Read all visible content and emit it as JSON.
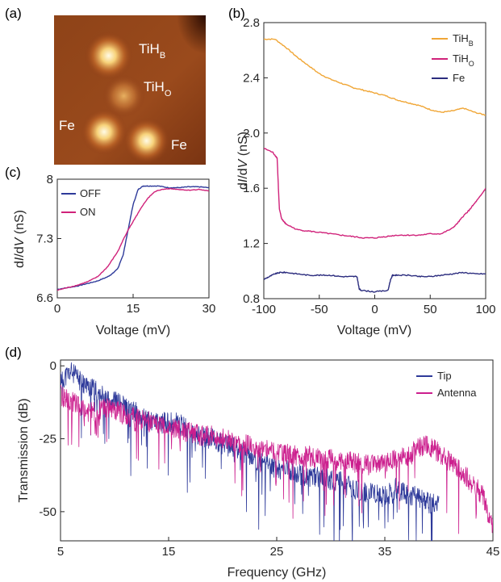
{
  "panel_labels": {
    "a": "(a)",
    "b": "(b)",
    "c": "(c)",
    "d": "(d)"
  },
  "colors": {
    "orange": "#F0A636",
    "magenta": "#D0227A",
    "navy": "#2B2C7E",
    "blue": "#2E3A9A",
    "pink": "#CC1F8E"
  },
  "image_labels": {
    "tihb": {
      "main": "TiH",
      "sub": "B"
    },
    "tiho": {
      "main": "TiH",
      "sub": "O"
    },
    "fe1": "Fe",
    "fe2": "Fe"
  },
  "chart_data": [
    {
      "id": "a",
      "type": "heatmap",
      "features": [
        {
          "label": "TiH_B",
          "x": 0.36,
          "y": 0.27,
          "strength": 1.0
        },
        {
          "label": "TiH_O",
          "x": 0.46,
          "y": 0.54,
          "strength": 0.55
        },
        {
          "label": "Fe",
          "x": 0.33,
          "y": 0.78,
          "strength": 0.85
        },
        {
          "label": "Fe",
          "x": 0.61,
          "y": 0.84,
          "strength": 0.85
        }
      ]
    },
    {
      "id": "b",
      "type": "line",
      "xlabel": "Voltage (mV)",
      "ylabel_parts": [
        "d",
        "I",
        "/d",
        "V",
        " (nS)"
      ],
      "xlim": [
        -100,
        100
      ],
      "ylim": [
        0.8,
        2.8
      ],
      "xticks": [
        -100,
        -50,
        0,
        50,
        100
      ],
      "xtick_labels": [
        "-100",
        "-50",
        "0",
        "50",
        "100"
      ],
      "yticks": [
        0.8,
        1.2,
        1.6,
        2.0,
        2.4,
        2.8
      ],
      "ytick_labels": [
        "0.8",
        "1.2",
        "1.6",
        "2.0",
        "2.4",
        "2.8"
      ],
      "legend_position": "top-right",
      "series": [
        {
          "name_main": "TiH",
          "name_sub": "B",
          "color": "#F0A636",
          "x": [
            -100,
            -90,
            -80,
            -70,
            -60,
            -50,
            -40,
            -30,
            -20,
            -10,
            0,
            10,
            20,
            30,
            40,
            50,
            60,
            70,
            80,
            90,
            100
          ],
          "y": [
            2.68,
            2.68,
            2.62,
            2.55,
            2.49,
            2.43,
            2.39,
            2.36,
            2.33,
            2.31,
            2.29,
            2.27,
            2.24,
            2.22,
            2.2,
            2.17,
            2.15,
            2.16,
            2.18,
            2.15,
            2.13
          ]
        },
        {
          "name_main": "TiH",
          "name_sub": "O",
          "color": "#D0227A",
          "x": [
            -100,
            -92,
            -88,
            -86,
            -84,
            -82,
            -80,
            -70,
            -60,
            -50,
            -40,
            -30,
            -20,
            -10,
            0,
            10,
            20,
            30,
            40,
            50,
            60,
            70,
            75,
            80,
            85,
            90,
            95,
            100
          ],
          "y": [
            1.89,
            1.86,
            1.82,
            1.45,
            1.38,
            1.36,
            1.34,
            1.3,
            1.29,
            1.28,
            1.27,
            1.26,
            1.25,
            1.24,
            1.24,
            1.25,
            1.26,
            1.26,
            1.26,
            1.27,
            1.27,
            1.31,
            1.35,
            1.4,
            1.44,
            1.49,
            1.54,
            1.6
          ]
        },
        {
          "name_main": "Fe",
          "name_sub": "",
          "color": "#2B2C7E",
          "x": [
            -100,
            -95,
            -90,
            -85,
            -80,
            -70,
            -60,
            -50,
            -40,
            -30,
            -20,
            -16,
            -14,
            -12,
            0,
            12,
            14,
            16,
            20,
            30,
            40,
            50,
            60,
            70,
            80,
            90,
            100
          ],
          "y": [
            0.94,
            0.96,
            0.98,
            0.99,
            0.99,
            0.98,
            0.97,
            0.97,
            0.97,
            0.96,
            0.96,
            0.96,
            0.87,
            0.86,
            0.85,
            0.86,
            0.93,
            0.97,
            0.97,
            0.97,
            0.96,
            0.96,
            0.97,
            0.98,
            0.99,
            0.98,
            0.98
          ]
        }
      ]
    },
    {
      "id": "c",
      "type": "line",
      "xlabel": "Voltage (mV)",
      "ylabel_parts": [
        "d",
        "I",
        "/d",
        "V",
        " (nS)"
      ],
      "xlim": [
        0,
        30
      ],
      "ylim": [
        6.6,
        8.0
      ],
      "xticks": [
        0,
        15,
        30
      ],
      "xtick_labels": [
        "0",
        "15",
        "30"
      ],
      "yticks": [
        6.6,
        7.3,
        8.0
      ],
      "ytick_labels": [
        "6.6",
        "7.3",
        "8"
      ],
      "legend_position": "top-left",
      "series": [
        {
          "name": "OFF",
          "color": "#2E3A9A",
          "x": [
            0,
            2,
            4,
            6,
            8,
            10,
            11,
            12,
            13,
            14,
            15,
            16,
            17,
            18,
            20,
            22,
            24,
            26,
            28,
            30
          ],
          "y": [
            6.7,
            6.72,
            6.74,
            6.77,
            6.8,
            6.85,
            6.89,
            6.95,
            7.1,
            7.4,
            7.7,
            7.88,
            7.92,
            7.92,
            7.92,
            7.9,
            7.9,
            7.91,
            7.91,
            7.9
          ]
        },
        {
          "name": "ON",
          "color": "#D0227A",
          "x": [
            0,
            2,
            4,
            6,
            8,
            10,
            12,
            13,
            14,
            15,
            16,
            17,
            18,
            19,
            20,
            22,
            24,
            26,
            28,
            30
          ],
          "y": [
            6.69,
            6.72,
            6.75,
            6.79,
            6.85,
            6.97,
            7.15,
            7.28,
            7.4,
            7.5,
            7.6,
            7.7,
            7.78,
            7.84,
            7.87,
            7.89,
            7.88,
            7.87,
            7.88,
            7.86
          ]
        }
      ]
    },
    {
      "id": "d",
      "type": "line",
      "xlabel": "Frequency (GHz)",
      "ylabel": "Transmission (dB)",
      "xlim": [
        5,
        45
      ],
      "ylim": [
        -60,
        2
      ],
      "xticks": [
        5,
        15,
        25,
        35,
        45
      ],
      "xtick_labels": [
        "5",
        "15",
        "25",
        "35",
        "45"
      ],
      "yticks": [
        0,
        -25,
        -50
      ],
      "ytick_labels": [
        "0",
        "-25",
        "-50"
      ],
      "legend_position": "top-right",
      "series": [
        {
          "name": "Tip",
          "color": "#2E3A9A",
          "x": [
            5,
            6,
            7,
            8,
            9,
            10,
            11,
            12,
            13,
            14,
            15,
            16,
            17,
            18,
            19,
            20,
            21,
            22,
            23,
            24,
            25,
            26,
            27,
            28,
            29,
            30,
            31,
            32,
            33,
            34,
            35,
            36,
            37,
            38,
            39,
            40
          ],
          "y": [
            -5,
            -2,
            -6,
            -8,
            -10,
            -12,
            -14,
            -16,
            -18,
            -20,
            -19,
            -20,
            -22,
            -24,
            -25,
            -27,
            -28,
            -30,
            -32,
            -34,
            -35,
            -36,
            -37,
            -38,
            -38,
            -39,
            -40,
            -42,
            -43,
            -44,
            -45,
            -42,
            -44,
            -45,
            -47,
            -48
          ],
          "noise": 8,
          "seed": 11
        },
        {
          "name": "Antenna",
          "color": "#CC1F8E",
          "x": [
            5,
            6,
            7,
            8,
            9,
            10,
            11,
            12,
            13,
            14,
            15,
            16,
            17,
            18,
            19,
            20,
            21,
            22,
            23,
            24,
            25,
            26,
            27,
            28,
            29,
            30,
            31,
            32,
            33,
            34,
            35,
            36,
            37,
            38,
            39,
            40,
            41,
            42,
            43,
            44,
            45
          ],
          "y": [
            -10,
            -12,
            -15,
            -16,
            -14,
            -15,
            -17,
            -18,
            -19,
            -20,
            -21,
            -22,
            -23,
            -24,
            -24,
            -25,
            -26,
            -27,
            -28,
            -29,
            -30,
            -30,
            -31,
            -31,
            -32,
            -32,
            -33,
            -33,
            -34,
            -34,
            -33,
            -32,
            -31,
            -28,
            -27,
            -30,
            -33,
            -36,
            -40,
            -44,
            -55
          ],
          "noise": 8,
          "seed": 29
        }
      ]
    }
  ],
  "legend_b": [
    {
      "main": "TiH",
      "sub": "B"
    },
    {
      "main": "TiH",
      "sub": "O"
    },
    {
      "main": "Fe",
      "sub": ""
    }
  ],
  "legend_c": [
    "OFF",
    "ON"
  ],
  "legend_d": [
    "Tip",
    "Antenna"
  ]
}
